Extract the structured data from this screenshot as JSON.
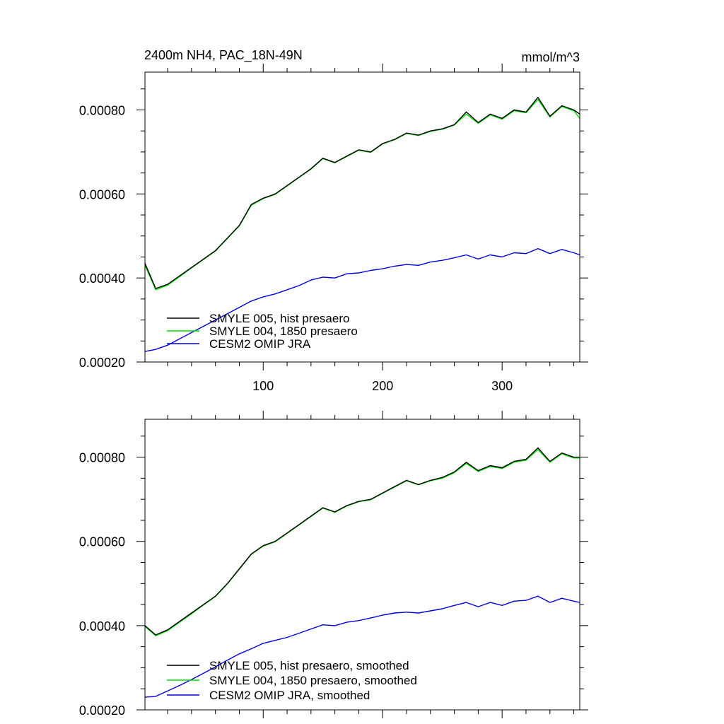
{
  "figure": {
    "title_left": "2400m NH4, PAC_18N-49N",
    "title_right": "mmol/m^3"
  },
  "chart_data": [
    {
      "type": "line",
      "title": "2400m NH4, PAC_18N-49N",
      "units": "mmol/m^3",
      "xlim": [
        1,
        365
      ],
      "ylim": [
        0.0002,
        0.00089
      ],
      "x_ticks": [
        100,
        200,
        300
      ],
      "x_tick_labels": [
        "100",
        "200",
        "300"
      ],
      "y_ticks": [
        0.0002,
        0.0004,
        0.0006,
        0.0008
      ],
      "y_tick_labels": [
        "0.00020",
        "0.00040",
        "0.00060",
        "0.00080"
      ],
      "legend_position": "bottom-left",
      "grid": false,
      "x": [
        1,
        10,
        20,
        30,
        40,
        50,
        60,
        70,
        80,
        90,
        100,
        110,
        120,
        130,
        140,
        150,
        160,
        170,
        180,
        190,
        200,
        210,
        220,
        230,
        240,
        250,
        260,
        270,
        280,
        290,
        300,
        310,
        320,
        330,
        340,
        350,
        360,
        365
      ],
      "series": [
        {
          "name": "SMYLE 005, hist presaero",
          "color": "#000000",
          "values": [
            0.000435,
            0.000375,
            0.000385,
            0.000405,
            0.000425,
            0.000445,
            0.000465,
            0.000495,
            0.000525,
            0.000575,
            0.00059,
            0.0006,
            0.00062,
            0.00064,
            0.00066,
            0.000685,
            0.000675,
            0.00069,
            0.000705,
            0.0007,
            0.00072,
            0.00073,
            0.000745,
            0.00074,
            0.00075,
            0.000755,
            0.000765,
            0.000795,
            0.00077,
            0.00079,
            0.00078,
            0.0008,
            0.000795,
            0.00083,
            0.000785,
            0.00081,
            0.0008,
            0.00079
          ]
        },
        {
          "name": "SMYLE 004, 1850 presaero",
          "color": "#00dd00",
          "values": [
            0.00043,
            0.000372,
            0.000383,
            0.000403,
            0.000424,
            0.000444,
            0.000464,
            0.000494,
            0.000524,
            0.000573,
            0.000589,
            0.000599,
            0.000619,
            0.000639,
            0.000659,
            0.000684,
            0.000674,
            0.000689,
            0.000704,
            0.000699,
            0.000719,
            0.000729,
            0.000744,
            0.000739,
            0.000749,
            0.000754,
            0.000764,
            0.00079,
            0.000768,
            0.000788,
            0.000778,
            0.000798,
            0.000793,
            0.000825,
            0.000783,
            0.000808,
            0.000798,
            0.00078
          ]
        },
        {
          "name": "CESM2 OMIP JRA",
          "color": "#0000dd",
          "values": [
            0.000225,
            0.00023,
            0.00024,
            0.000255,
            0.00027,
            0.000285,
            0.0003,
            0.000315,
            0.00033,
            0.000345,
            0.000355,
            0.000362,
            0.000372,
            0.000382,
            0.000395,
            0.000402,
            0.0004,
            0.00041,
            0.000412,
            0.000418,
            0.000422,
            0.000428,
            0.000432,
            0.00043,
            0.000438,
            0.000442,
            0.000448,
            0.000455,
            0.000445,
            0.000455,
            0.00045,
            0.00046,
            0.000458,
            0.00047,
            0.000458,
            0.000468,
            0.00046,
            0.000455
          ]
        }
      ]
    },
    {
      "type": "line",
      "xlim": [
        1,
        365
      ],
      "ylim": [
        0.0002,
        0.00089
      ],
      "x_ticks": [
        100,
        200,
        300
      ],
      "y_ticks": [
        0.0002,
        0.0004,
        0.0006,
        0.0008
      ],
      "y_tick_labels": [
        "0.00020",
        "0.00040",
        "0.00060",
        "0.00080"
      ],
      "legend_position": "bottom-left",
      "grid": false,
      "x": [
        1,
        10,
        20,
        30,
        40,
        50,
        60,
        70,
        80,
        90,
        100,
        110,
        120,
        130,
        140,
        150,
        160,
        170,
        180,
        190,
        200,
        210,
        220,
        230,
        240,
        250,
        260,
        270,
        280,
        290,
        300,
        310,
        320,
        330,
        340,
        350,
        360,
        365
      ],
      "series": [
        {
          "name": "SMYLE 005, hist presaero, smoothed",
          "color": "#000000",
          "values": [
            0.0004,
            0.000378,
            0.00039,
            0.00041,
            0.00043,
            0.00045,
            0.00047,
            0.0005,
            0.000535,
            0.00057,
            0.00059,
            0.0006,
            0.00062,
            0.00064,
            0.00066,
            0.00068,
            0.00067,
            0.000685,
            0.000695,
            0.0007,
            0.000715,
            0.00073,
            0.000745,
            0.000735,
            0.000745,
            0.000752,
            0.000765,
            0.000788,
            0.000768,
            0.00078,
            0.000775,
            0.00079,
            0.000795,
            0.000822,
            0.00079,
            0.00081,
            0.0008,
            0.0008
          ]
        },
        {
          "name": "SMYLE 004, 1850 presaero, smoothed",
          "color": "#00dd00",
          "values": [
            0.000398,
            0.000376,
            0.000388,
            0.000408,
            0.000428,
            0.000449,
            0.000469,
            0.000499,
            0.000534,
            0.000569,
            0.000589,
            0.000599,
            0.000619,
            0.000639,
            0.000659,
            0.000679,
            0.000669,
            0.000684,
            0.000694,
            0.000699,
            0.000714,
            0.000729,
            0.000744,
            0.000734,
            0.000744,
            0.00075,
            0.000763,
            0.000785,
            0.000766,
            0.000778,
            0.000773,
            0.000788,
            0.000793,
            0.000818,
            0.000788,
            0.000808,
            0.000798,
            0.000798
          ]
        },
        {
          "name": "CESM2 OMIP JRA, smoothed",
          "color": "#0000dd",
          "values": [
            0.00023,
            0.000232,
            0.000245,
            0.000258,
            0.000272,
            0.000287,
            0.000302,
            0.000318,
            0.000333,
            0.000345,
            0.000358,
            0.000365,
            0.000372,
            0.000382,
            0.000392,
            0.000402,
            0.0004,
            0.000408,
            0.000412,
            0.000418,
            0.000425,
            0.00043,
            0.000432,
            0.00043,
            0.000435,
            0.00044,
            0.000448,
            0.000455,
            0.000445,
            0.000455,
            0.000448,
            0.000458,
            0.00046,
            0.00047,
            0.000455,
            0.000465,
            0.000458,
            0.000455
          ]
        }
      ]
    }
  ]
}
